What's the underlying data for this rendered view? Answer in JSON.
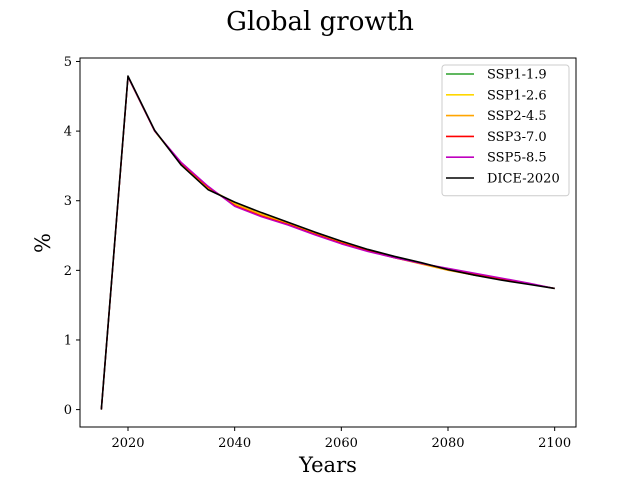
{
  "chart_data": {
    "type": "line",
    "title": "Global growth",
    "xlabel": "Years",
    "ylabel": "%",
    "xlim": [
      2011,
      2104
    ],
    "ylim": [
      -0.25,
      5.05
    ],
    "xticks": [
      2020,
      2040,
      2060,
      2080,
      2100
    ],
    "yticks": [
      0,
      1,
      2,
      3,
      4,
      5
    ],
    "grid": false,
    "legend_position": "top-right",
    "x": [
      2015,
      2020,
      2025,
      2030,
      2035,
      2040,
      2045,
      2050,
      2055,
      2060,
      2065,
      2070,
      2075,
      2080,
      2085,
      2090,
      2095,
      2100
    ],
    "series": [
      {
        "name": "SSP1-1.9",
        "color": "#2ca02c",
        "values": [
          0,
          4.78,
          4.0,
          3.52,
          3.18,
          2.97,
          2.82,
          2.68,
          2.54,
          2.41,
          2.29,
          2.19,
          2.1,
          2.01,
          1.93,
          1.87,
          1.81,
          1.74
        ]
      },
      {
        "name": "SSP1-2.6",
        "color": "#ffd700",
        "values": [
          0,
          4.78,
          4.0,
          3.52,
          3.18,
          2.97,
          2.82,
          2.68,
          2.54,
          2.41,
          2.29,
          2.19,
          2.1,
          2.01,
          1.93,
          1.87,
          1.81,
          1.74
        ]
      },
      {
        "name": "SSP2-4.5",
        "color": "#ffa500",
        "values": [
          0,
          4.78,
          4.0,
          3.53,
          3.19,
          2.95,
          2.8,
          2.67,
          2.53,
          2.4,
          2.28,
          2.18,
          2.09,
          2.0,
          1.93,
          1.87,
          1.81,
          1.74
        ]
      },
      {
        "name": "SSP3-7.0",
        "color": "#ff0000",
        "values": [
          0,
          4.78,
          4.0,
          3.54,
          3.2,
          2.93,
          2.78,
          2.66,
          2.52,
          2.39,
          2.28,
          2.18,
          2.1,
          2.02,
          1.95,
          1.88,
          1.81,
          1.74
        ]
      },
      {
        "name": "SSP5-8.5",
        "color": "#bf00bf",
        "values": [
          0,
          4.78,
          4.0,
          3.55,
          3.21,
          2.92,
          2.77,
          2.65,
          2.51,
          2.38,
          2.27,
          2.18,
          2.1,
          2.03,
          1.96,
          1.89,
          1.82,
          1.74
        ]
      },
      {
        "name": "DICE-2020",
        "color": "#000000",
        "values": [
          0,
          4.79,
          4.01,
          3.51,
          3.16,
          2.98,
          2.83,
          2.69,
          2.55,
          2.42,
          2.3,
          2.2,
          2.11,
          2.01,
          1.93,
          1.86,
          1.8,
          1.74
        ]
      }
    ]
  }
}
